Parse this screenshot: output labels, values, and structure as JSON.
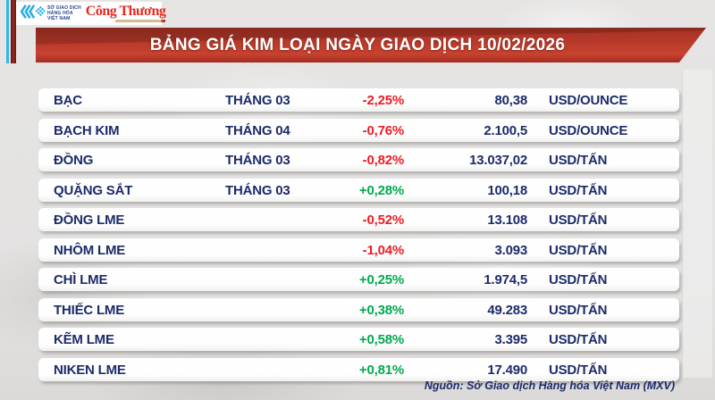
{
  "brand": {
    "mxv_org_line1": "SỞ GIAO DỊCH",
    "mxv_org_line2": "HÀNG HÓA",
    "mxv_org_line3": "VIỆT NAM",
    "newspaper": "Công Thương"
  },
  "title_bar": {
    "title": "BẢNG GIÁ KIM LOẠI NGÀY GIAO DỊCH 10/02/2026"
  },
  "footer": {
    "source": "Nguồn: Sở Giao dịch Hàng hóa Việt Nam (MXV)"
  },
  "colors": {
    "up_green": "#00a94f",
    "down_red": "#ed1c24",
    "navy_text": "#1c2b6a",
    "bar_red": "#bb3a2a",
    "mxv_cyan": "#29abe2",
    "cong_thuong_red": "#e42a20"
  },
  "chart_data": {
    "type": "table",
    "title": "BẢNG GIÁ KIM LOẠI NGÀY GIAO DỊCH 10/02/2026",
    "date": "10/02/2026",
    "source": "Nguồn: Sở Giao dịch Hàng hóa Việt Nam (MXV)",
    "rows": [
      {
        "name": "BẠC",
        "month": "THÁNG 03",
        "change": "-2,25%",
        "change_value": -2.25,
        "price": "80,38",
        "price_value": 80.38,
        "unit": "USD/OUNCE"
      },
      {
        "name": "BẠCH KIM",
        "month": "THÁNG 04",
        "change": "-0,76%",
        "change_value": -0.76,
        "price": "2.100,5",
        "price_value": 2100.5,
        "unit": "USD/OUNCE"
      },
      {
        "name": "ĐỒNG",
        "month": "THÁNG 03",
        "change": "-0,82%",
        "change_value": -0.82,
        "price": "13.037,02",
        "price_value": 13037.02,
        "unit": "USD/TẤN"
      },
      {
        "name": "QUẶNG SẮT",
        "month": "THÁNG 03",
        "change": "+0,28%",
        "change_value": 0.28,
        "price": "100,18",
        "price_value": 100.18,
        "unit": "USD/TẤN"
      },
      {
        "name": "ĐỒNG LME",
        "month": "",
        "change": "-0,52%",
        "change_value": -0.52,
        "price": "13.108",
        "price_value": 13108,
        "unit": "USD/TẤN"
      },
      {
        "name": "NHÔM LME",
        "month": "",
        "change": "-1,04%",
        "change_value": -1.04,
        "price": "3.093",
        "price_value": 3093,
        "unit": "USD/TẤN"
      },
      {
        "name": "CHÌ LME",
        "month": "",
        "change": "+0,25%",
        "change_value": 0.25,
        "price": "1.974,5",
        "price_value": 1974.5,
        "unit": "USD/TẤN"
      },
      {
        "name": "THIẾC LME",
        "month": "",
        "change": "+0,38%",
        "change_value": 0.38,
        "price": "49.283",
        "price_value": 49283,
        "unit": "USD/TẤN"
      },
      {
        "name": "KẼM LME",
        "month": "",
        "change": "+0,58%",
        "change_value": 0.58,
        "price": "3.395",
        "price_value": 3395,
        "unit": "USD/TẤN"
      },
      {
        "name": "NIKEN LME",
        "month": "",
        "change": "+0,81%",
        "change_value": 0.81,
        "price": "17.490",
        "price_value": 17490,
        "unit": "USD/TẤN"
      }
    ]
  }
}
